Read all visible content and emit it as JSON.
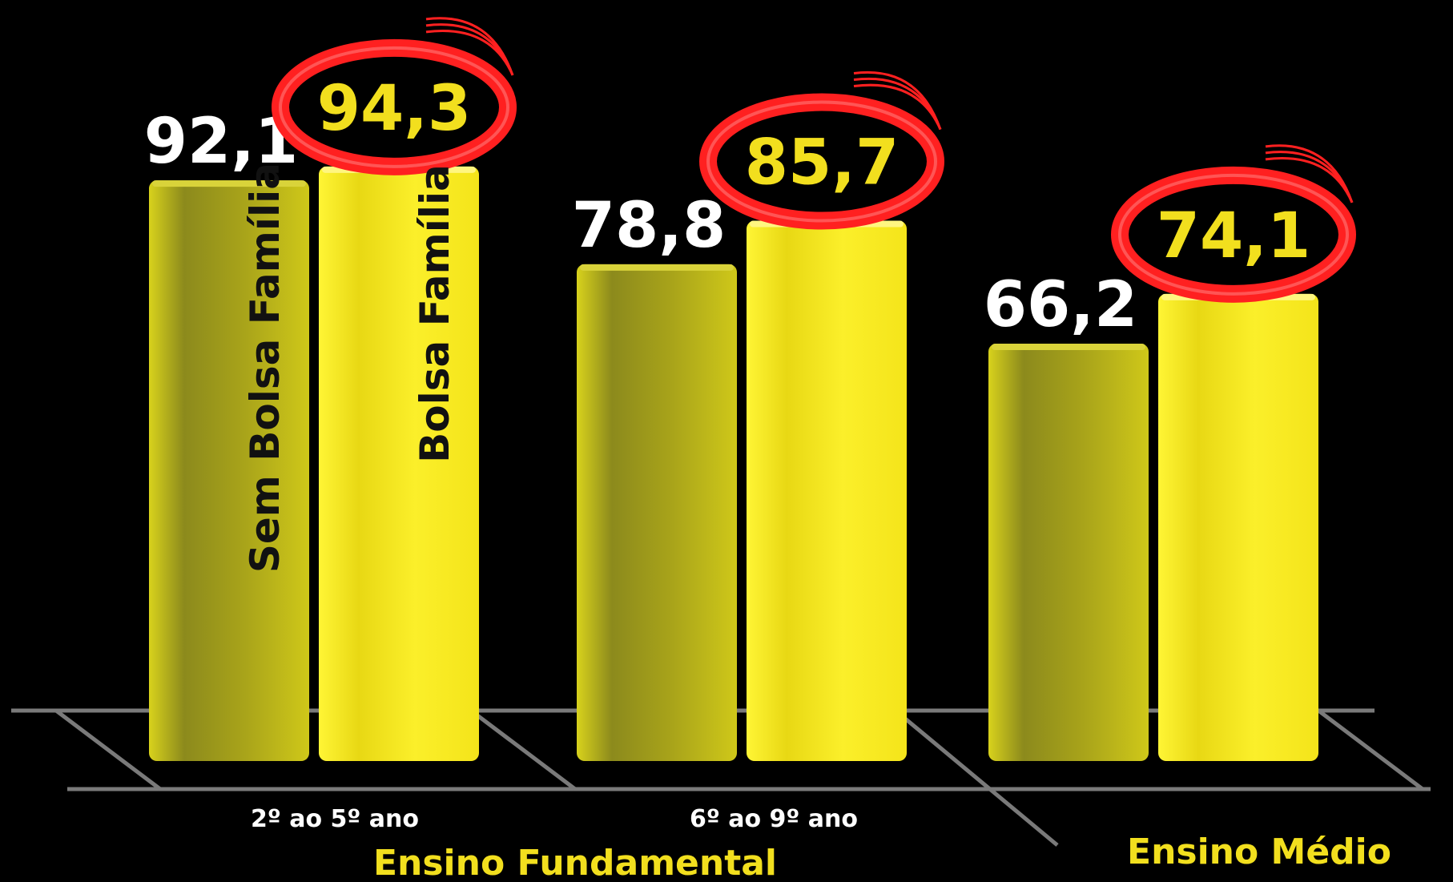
{
  "chart_data": {
    "type": "bar",
    "categories": [
      "2º ao 5º ano",
      "6º ao 9º ano",
      "Ensino Médio"
    ],
    "groups": [
      {
        "label": "Ensino Fundamental",
        "categories": [
          "2º ao 5º ano",
          "6º ao 9º ano"
        ]
      },
      {
        "label": "Ensino Médio",
        "categories": []
      }
    ],
    "series": [
      {
        "name": "Sem Bolsa Família",
        "values": [
          92.1,
          78.8,
          66.2
        ],
        "value_labels": [
          "92,1",
          "78,8",
          "66,2"
        ],
        "color": "#b8b21a"
      },
      {
        "name": "Bolsa Família",
        "values": [
          94.3,
          85.7,
          74.1
        ],
        "value_labels": [
          "94,3",
          "85,7",
          "74,1"
        ],
        "color": "#f0e51e"
      }
    ],
    "highlight": {
      "series": "Bolsa Família",
      "style": "red-ring",
      "color": "#ff2020"
    },
    "label_colors": {
      "Sem Bolsa Família": "#ffffff",
      "Bolsa Família": "#f2df1e"
    },
    "background": "#000000",
    "grid": "3d-floor",
    "title": "",
    "xlabel": "",
    "ylabel": ""
  }
}
